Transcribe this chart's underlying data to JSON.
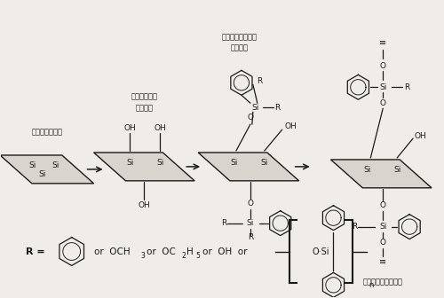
{
  "bg_color": "#f0ede8",
  "line_color": "#1a1a1a",
  "text_color": "#1a1a1a",
  "fig_width": 5.0,
  "fig_height": 3.36,
  "dpi": 100,
  "label1": "玄武岩纤维织物",
  "label2": "预处理玄武岩\n纤维织物",
  "label3": "含接枝链的玄武岩\n纤维织物",
  "label4": "改性玄武岩纤维织物"
}
